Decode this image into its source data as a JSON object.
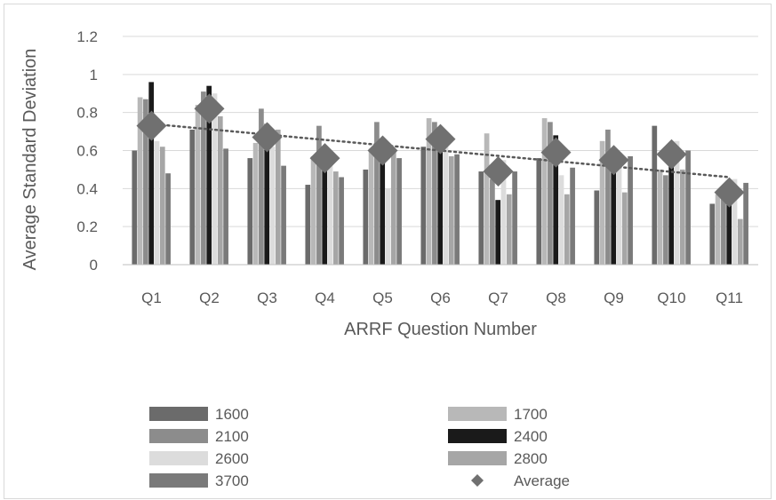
{
  "chart_data": {
    "type": "bar",
    "title": "",
    "xlabel": "ARRF Question Number",
    "ylabel": "Average Standard Deviation",
    "ylim": [
      0,
      1.2
    ],
    "yticks": [
      "0",
      "0.2",
      "0.4",
      "0.6",
      "0.8",
      "1",
      "1.2"
    ],
    "grid": true,
    "legend_position": "bottom",
    "categories": [
      "Q1",
      "Q2",
      "Q3",
      "Q4",
      "Q5",
      "Q6",
      "Q7",
      "Q8",
      "Q9",
      "Q10",
      "Q11"
    ],
    "series": [
      {
        "name": "1600",
        "color": "#6b6b6b",
        "values": [
          0.6,
          0.71,
          0.56,
          0.42,
          0.5,
          0.62,
          0.49,
          0.56,
          0.39,
          0.73,
          0.32
        ]
      },
      {
        "name": "1700",
        "color": "#b8b8b8",
        "values": [
          0.88,
          0.84,
          0.64,
          0.57,
          0.61,
          0.77,
          0.69,
          0.77,
          0.65,
          0.5,
          0.37
        ]
      },
      {
        "name": "2100",
        "color": "#8c8c8c",
        "values": [
          0.87,
          0.91,
          0.82,
          0.73,
          0.75,
          0.75,
          0.45,
          0.75,
          0.71,
          0.47,
          0.4
        ]
      },
      {
        "name": "2400",
        "color": "#1a1a1a",
        "values": [
          0.96,
          0.94,
          0.74,
          0.55,
          0.55,
          0.62,
          0.34,
          0.68,
          0.56,
          0.62,
          0.34
        ]
      },
      {
        "name": "2600",
        "color": "#dcdcdc",
        "values": [
          0.65,
          0.9,
          0.62,
          0.56,
          0.4,
          0.66,
          0.55,
          0.47,
          0.52,
          0.65,
          0.45
        ]
      },
      {
        "name": "2800",
        "color": "#a6a6a6",
        "values": [
          0.62,
          0.78,
          0.71,
          0.49,
          0.6,
          0.57,
          0.37,
          0.37,
          0.38,
          0.5,
          0.24
        ]
      },
      {
        "name": "3700",
        "color": "#7a7a7a",
        "values": [
          0.48,
          0.61,
          0.52,
          0.46,
          0.56,
          0.58,
          0.49,
          0.51,
          0.57,
          0.6,
          0.43
        ]
      }
    ],
    "average": {
      "name": "Average",
      "color": "#707070",
      "values": [
        0.73,
        0.82,
        0.67,
        0.56,
        0.6,
        0.66,
        0.49,
        0.59,
        0.55,
        0.58,
        0.38
      ]
    },
    "trendline": {
      "style": "dotted",
      "color": "#595959",
      "start": 0.74,
      "end": 0.46
    }
  }
}
